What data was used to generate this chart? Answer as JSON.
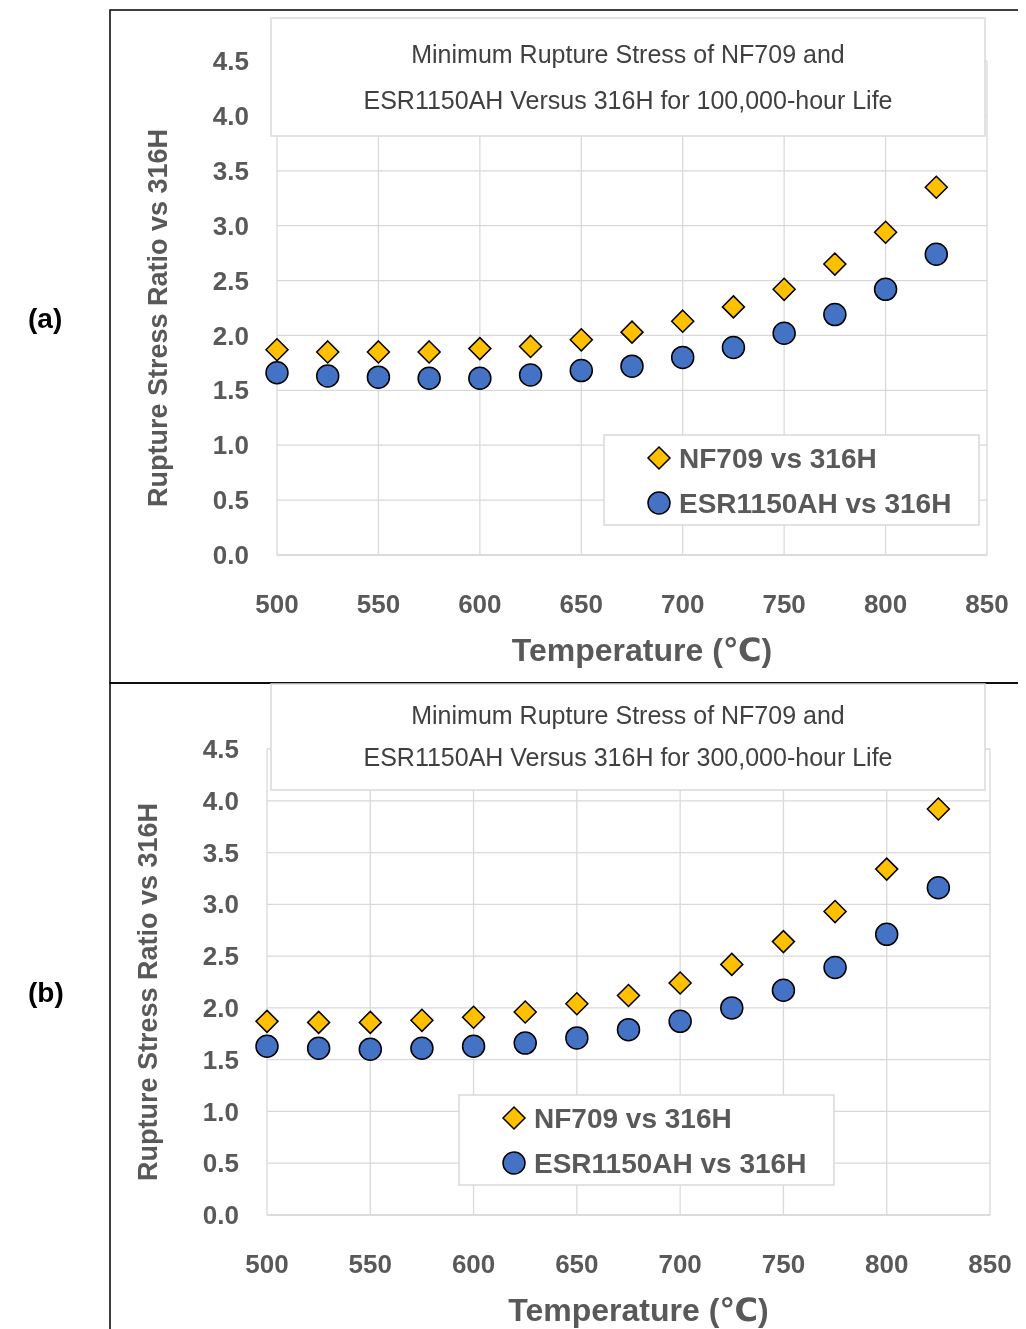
{
  "chart_data": [
    {
      "type": "scatter",
      "title": "Minimum Rupture Stress of NF709 and ESR1150AH Versus 316H for 100,000-hour Life",
      "xlabel": "Temperature (℃)",
      "ylabel": "Rupture Stress Ratio vs 316H",
      "annotations": [
        "(a)"
      ],
      "x": [
        500,
        525,
        550,
        575,
        600,
        625,
        650,
        675,
        700,
        725,
        750,
        775,
        800,
        825
      ],
      "xlim": [
        500,
        850
      ],
      "xticks": [
        500,
        550,
        600,
        650,
        700,
        750,
        800,
        850
      ],
      "ylim": [
        0,
        4.5
      ],
      "yticks": [
        {
          "value": 0,
          "label": "0.0"
        },
        {
          "value": 0.5,
          "label": "0.5"
        },
        {
          "value": 1,
          "label": "1.0"
        },
        {
          "value": 1.5,
          "label": "1.5"
        },
        {
          "value": 2,
          "label": "2.0"
        },
        {
          "value": 2.5,
          "label": "2.5"
        },
        {
          "value": 3,
          "label": "3.0"
        },
        {
          "value": 3.5,
          "label": "3.5"
        },
        {
          "value": 4,
          "label": "4.0"
        },
        {
          "value": 4.5,
          "label": "4.5"
        }
      ],
      "grid": true,
      "legend": "bottom right",
      "series": [
        {
          "name": "NF709 vs 316H",
          "color": "#ffc000",
          "marker": "diamond",
          "values": [
            1.87,
            1.85,
            1.85,
            1.85,
            1.88,
            1.9,
            1.96,
            2.03,
            2.13,
            2.26,
            2.42,
            2.65,
            2.94,
            3.35
          ]
        },
        {
          "name": "ESR1150AH vs 316H",
          "color": "#4472c4",
          "marker": "circle",
          "values": [
            1.66,
            1.63,
            1.62,
            1.61,
            1.61,
            1.64,
            1.68,
            1.72,
            1.8,
            1.89,
            2.02,
            2.19,
            2.42,
            2.74
          ]
        }
      ]
    },
    {
      "type": "scatter",
      "title": "Minimum Rupture Stress of NF709 and ESR1150AH Versus 316H for 300,000-hour Life",
      "xlabel": "Temperature (℃)",
      "ylabel": "Rupture Stress Ratio vs 316H",
      "annotations": [
        "(b)"
      ],
      "x": [
        500,
        525,
        550,
        575,
        600,
        625,
        650,
        675,
        700,
        725,
        750,
        775,
        800,
        825
      ],
      "xlim": [
        500,
        850
      ],
      "xticks": [
        500,
        550,
        600,
        650,
        700,
        750,
        800,
        850
      ],
      "ylim": [
        0,
        4.5
      ],
      "yticks": [
        {
          "value": 0,
          "label": "0.0"
        },
        {
          "value": 0.5,
          "label": "0.5"
        },
        {
          "value": 1,
          "label": "1.0"
        },
        {
          "value": 1.5,
          "label": "1.5"
        },
        {
          "value": 2,
          "label": "2.0"
        },
        {
          "value": 2.5,
          "label": "2.5"
        },
        {
          "value": 3,
          "label": "3.0"
        },
        {
          "value": 3.5,
          "label": "3.5"
        },
        {
          "value": 4,
          "label": "4.0"
        },
        {
          "value": 4.5,
          "label": "4.5"
        }
      ],
      "grid": true,
      "legend": "bottom",
      "series": [
        {
          "name": "NF709 vs 316H",
          "color": "#ffc000",
          "marker": "diamond",
          "values": [
            1.87,
            1.86,
            1.86,
            1.88,
            1.91,
            1.96,
            2.04,
            2.12,
            2.24,
            2.42,
            2.64,
            2.93,
            3.34,
            3.92
          ]
        },
        {
          "name": "ESR1150AH vs 316H",
          "color": "#4472c4",
          "marker": "circle",
          "values": [
            1.63,
            1.61,
            1.6,
            1.61,
            1.63,
            1.66,
            1.71,
            1.79,
            1.87,
            2.0,
            2.17,
            2.39,
            2.71,
            3.16
          ]
        }
      ]
    }
  ]
}
